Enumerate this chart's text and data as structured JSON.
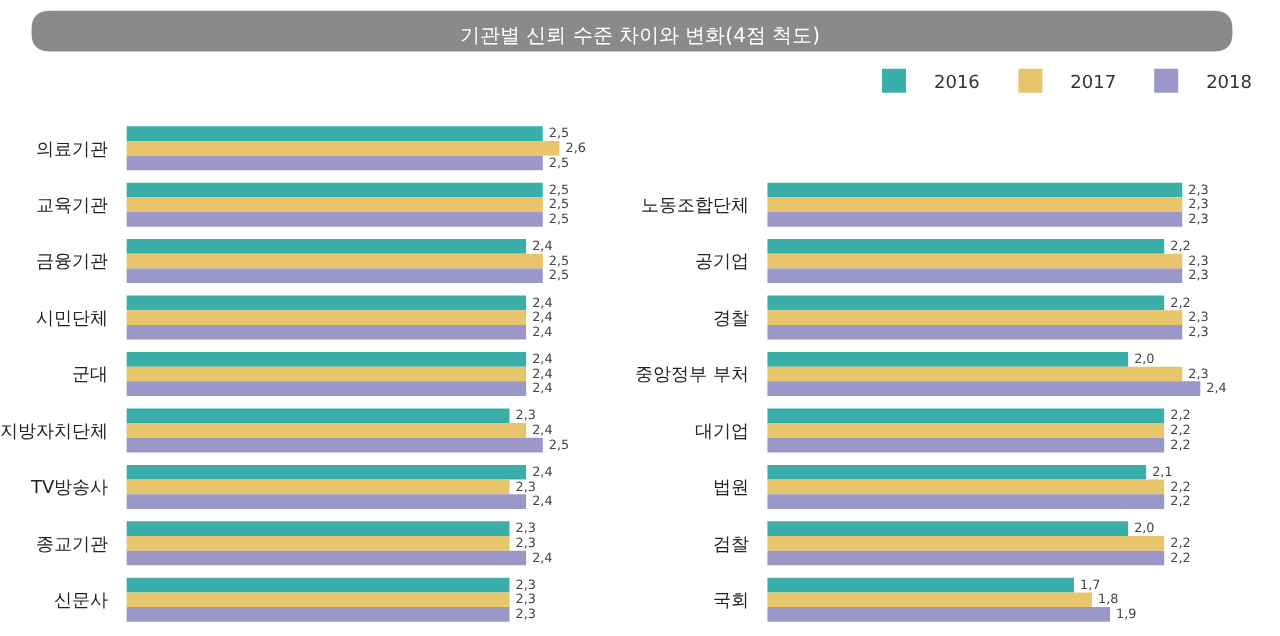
{
  "chart_data": [
    {
      "type": "bar",
      "orientation": "horizontal",
      "title": "기관별 신뢰 수준 차이와 변화(4점 척도)",
      "legend": "top right",
      "tick_labels": "y",
      "categories": [
        "의료기관",
        "교육기관",
        "금융기관",
        "시민단체",
        "군대",
        "지방자치단체",
        "TV방송사",
        "종교기관",
        "신문사"
      ],
      "series": [
        {
          "name": "2016",
          "color": "#3aafa9",
          "values": [
            2.5,
            2.5,
            2.4,
            2.4,
            2.4,
            2.3,
            2.4,
            2.3,
            2.3
          ],
          "value_labels": [
            "2,5",
            "2,5",
            "2,4",
            "2,4",
            "2,4",
            "2,3",
            "2,4",
            "2,3",
            "2,3"
          ]
        },
        {
          "name": "2017",
          "color": "#e8c46a",
          "values": [
            2.6,
            2.5,
            2.5,
            2.4,
            2.4,
            2.4,
            2.3,
            2.3,
            2.3
          ],
          "value_labels": [
            "2,6",
            "2,5",
            "2,5",
            "2,4",
            "2,4",
            "2,4",
            "2,3",
            "2,3",
            "2,3"
          ]
        },
        {
          "name": "2018",
          "color": "#9b97c8",
          "values": [
            2.5,
            2.5,
            2.5,
            2.4,
            2.4,
            2.5,
            2.4,
            2.4,
            2.3
          ],
          "value_labels": [
            "2,5",
            "2,5",
            "2,5",
            "2,4",
            "2,4",
            "2,5",
            "2,4",
            "2,4",
            "2,3"
          ]
        }
      ]
    },
    {
      "type": "bar",
      "orientation": "horizontal",
      "tick_labels": "y",
      "categories": [
        "노동조합단체",
        "공기업",
        "경찰",
        "중앙정부 부처",
        "대기업",
        "법원",
        "검찰",
        "국회"
      ],
      "series": [
        {
          "name": "2016",
          "color": "#3aafa9",
          "values": [
            2.3,
            2.2,
            2.2,
            2.0,
            2.2,
            2.1,
            2.0,
            1.7
          ],
          "value_labels": [
            "2,3",
            "2,2",
            "2,2",
            "2,0",
            "2,2",
            "2,1",
            "2,0",
            "1,7"
          ]
        },
        {
          "name": "2017",
          "color": "#e8c46a",
          "values": [
            2.3,
            2.3,
            2.3,
            2.3,
            2.2,
            2.2,
            2.2,
            1.8
          ],
          "value_labels": [
            "2,3",
            "2,3",
            "2,3",
            "2,3",
            "2,2",
            "2,2",
            "2,2",
            "1,8"
          ]
        },
        {
          "name": "2018",
          "color": "#9b97c8",
          "values": [
            2.3,
            2.3,
            2.3,
            2.4,
            2.2,
            2.2,
            2.2,
            1.9
          ],
          "value_labels": [
            "2,3",
            "2,3",
            "2,3",
            "2,4",
            "2,2",
            "2,2",
            "2,2",
            "1,9"
          ]
        }
      ]
    }
  ]
}
